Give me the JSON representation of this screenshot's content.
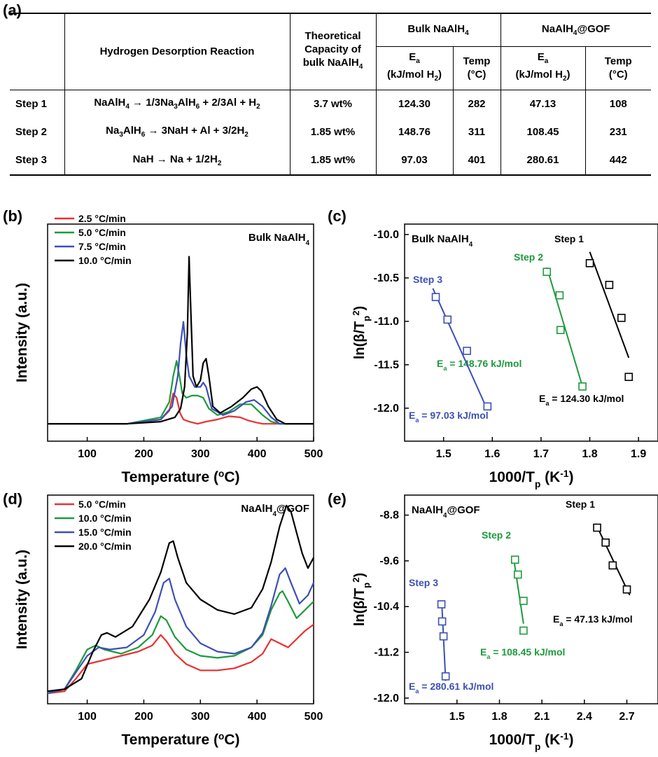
{
  "panel_labels": {
    "a": "(a)",
    "b": "(b)",
    "c": "(c)",
    "d": "(d)",
    "e": "(e)"
  },
  "table": {
    "h_reaction": "Hydrogen Desorption Reaction",
    "h_capacity_1": "Theoretical",
    "h_capacity_2": "Capacity of",
    "h_capacity_3": "bulk NaAlH",
    "h_capacity_3_sub": "4",
    "h_bulk": "Bulk NaAlH",
    "h_bulk_sub": "4",
    "h_gof": "NaAlH",
    "h_gof_sub": "4",
    "h_gof_tail": "@GOF",
    "h_ea": "E",
    "h_ea_sub": "a",
    "h_ea_units_1": "(kJ/mol H",
    "h_ea_units_sub": "2",
    "h_ea_units_2": ")",
    "h_temp_1": "Temp",
    "h_temp_2": "(°C)",
    "rows": [
      {
        "step": "Step 1",
        "reaction": [
          [
            "NaAlH",
            "n"
          ],
          [
            "4",
            "s"
          ],
          [
            " → 1/3Na",
            "n"
          ],
          [
            "3",
            "s"
          ],
          [
            "AlH",
            "n"
          ],
          [
            "6",
            "s"
          ],
          [
            " + 2/3Al + H",
            "n"
          ],
          [
            "2",
            "s"
          ]
        ],
        "capacity": "3.7 wt%",
        "bulk_ea": "124.30",
        "bulk_temp": "282",
        "gof_ea": "47.13",
        "gof_temp": "108"
      },
      {
        "step": "Step 2",
        "reaction": [
          [
            "Na",
            "n"
          ],
          [
            "3",
            "s"
          ],
          [
            "AlH",
            "n"
          ],
          [
            "6",
            "s"
          ],
          [
            " → 3NaH + Al + 3/2H",
            "n"
          ],
          [
            "2",
            "s"
          ]
        ],
        "capacity": "1.85 wt%",
        "bulk_ea": "148.76",
        "bulk_temp": "311",
        "gof_ea": "108.45",
        "gof_temp": "231"
      },
      {
        "step": "Step 3",
        "reaction": [
          [
            "NaH → Na + 1/2H",
            "n"
          ],
          [
            "2",
            "s"
          ]
        ],
        "capacity": "1.85 wt%",
        "bulk_ea": "97.03",
        "bulk_temp": "401",
        "gof_ea": "280.61",
        "gof_temp": "442"
      }
    ]
  },
  "chart_data": [
    {
      "id": "b",
      "type": "line",
      "annotation": "Bulk NaAlH",
      "annotation_sub": "4",
      "xlabel": "Temperature (",
      "xlabel_sup": "o",
      "xlabel_tail": "C)",
      "ylabel": "Intensity (a.u.)",
      "xlim": [
        30,
        500
      ],
      "ylim": [
        0,
        1
      ],
      "xticks": [
        100,
        200,
        300,
        400,
        500
      ],
      "series": [
        {
          "name": "2.5 °C/min",
          "color": "#e8312f",
          "x": [
            30,
            170,
            230,
            245,
            252,
            258,
            264,
            270,
            280,
            295,
            310,
            330,
            350,
            370,
            385,
            400,
            410,
            430,
            450,
            500
          ],
          "y": [
            0.08,
            0.08,
            0.1,
            0.14,
            0.22,
            0.2,
            0.13,
            0.1,
            0.09,
            0.08,
            0.09,
            0.1,
            0.115,
            0.11,
            0.095,
            0.085,
            0.08,
            0.08,
            0.08,
            0.08
          ]
        },
        {
          "name": "5.0 °C/min",
          "color": "#1c9a3c",
          "x": [
            30,
            170,
            230,
            245,
            252,
            258,
            263,
            268,
            275,
            285,
            295,
            305,
            315,
            330,
            350,
            370,
            390,
            410,
            425,
            440,
            500
          ],
          "y": [
            0.08,
            0.08,
            0.11,
            0.18,
            0.3,
            0.37,
            0.3,
            0.22,
            0.2,
            0.21,
            0.21,
            0.2,
            0.15,
            0.12,
            0.135,
            0.17,
            0.17,
            0.12,
            0.09,
            0.08,
            0.08
          ]
        },
        {
          "name": "7.5 °C/min",
          "color": "#3c4fb5",
          "x": [
            30,
            170,
            230,
            250,
            260,
            265,
            270,
            275,
            280,
            290,
            300,
            305,
            310,
            320,
            340,
            360,
            380,
            395,
            410,
            425,
            440,
            500
          ],
          "y": [
            0.08,
            0.08,
            0.1,
            0.16,
            0.3,
            0.45,
            0.55,
            0.4,
            0.3,
            0.25,
            0.25,
            0.27,
            0.25,
            0.15,
            0.12,
            0.14,
            0.18,
            0.19,
            0.16,
            0.11,
            0.08,
            0.08
          ]
        },
        {
          "name": "10.0 °C/min",
          "color": "#000000",
          "x": [
            30,
            170,
            230,
            255,
            265,
            272,
            277,
            280,
            283,
            287,
            293,
            300,
            305,
            310,
            315,
            322,
            335,
            355,
            375,
            390,
            400,
            408,
            420,
            435,
            450,
            500
          ],
          "y": [
            0.08,
            0.08,
            0.09,
            0.11,
            0.15,
            0.25,
            0.5,
            0.85,
            0.6,
            0.3,
            0.25,
            0.28,
            0.36,
            0.38,
            0.3,
            0.16,
            0.13,
            0.16,
            0.2,
            0.24,
            0.25,
            0.23,
            0.16,
            0.1,
            0.08,
            0.08
          ]
        }
      ]
    },
    {
      "id": "c",
      "type": "scatter",
      "annotation": "Bulk NaAlH",
      "annotation_sub": "4",
      "xlabel": "1000/T",
      "xlabel_sub": "p",
      "xlabel_units": " (K",
      "xlabel_sup": "-1",
      "xlabel_tail": ")",
      "ylabel": "ln(β/T",
      "ylabel_sub": "p",
      "ylabel_sup": "2",
      "ylabel_tail": ")",
      "xlim": [
        1.42,
        1.94
      ],
      "ylim": [
        -12.38,
        -9.88
      ],
      "xticks": [
        1.5,
        1.6,
        1.7,
        1.8,
        1.9
      ],
      "yticks": [
        -10.0,
        -10.5,
        -11.0,
        -11.5,
        -12.0
      ],
      "ytick_labels": [
        "-10.0",
        "-10.5",
        "-11.0",
        "-11.5",
        "-12.0"
      ],
      "series": [
        {
          "name": "Step 1",
          "color": "#000000",
          "x": [
            1.8,
            1.84,
            1.865,
            1.88
          ],
          "y": [
            -10.33,
            -10.58,
            -10.96,
            -11.64
          ],
          "fit": [
            [
              1.8,
              -10.2
            ],
            [
              1.88,
              -11.42
            ]
          ],
          "ea": "E",
          "ea_sub": "a",
          "ea_tail": " = 124.30 kJ/mol"
        },
        {
          "name": "Step 2",
          "color": "#1c9a3c",
          "x": [
            1.712,
            1.738,
            1.74,
            1.785
          ],
          "y": [
            -10.43,
            -10.7,
            -11.1,
            -11.75
          ],
          "fit": [
            [
              1.712,
              -10.38
            ],
            [
              1.785,
              -11.75
            ]
          ],
          "ea": "E",
          "ea_sub": "a",
          "ea_tail": " = 148.76 kJ/mol"
        },
        {
          "name": "Step 3",
          "color": "#3c4fb5",
          "x": [
            1.484,
            1.508,
            1.548,
            1.59
          ],
          "y": [
            -10.72,
            -10.98,
            -11.34,
            -11.98
          ],
          "fit": [
            [
              1.478,
              -10.62
            ],
            [
              1.59,
              -12.02
            ]
          ],
          "ea": "E",
          "ea_sub": "a",
          "ea_tail": " = 97.03 kJ/mol"
        }
      ]
    },
    {
      "id": "d",
      "type": "line",
      "annotation": "NaAlH",
      "annotation_sub": "4",
      "annotation_tail": "@GOF",
      "xlabel": "Temperature (",
      "xlabel_sup": "o",
      "xlabel_tail": "C)",
      "ylabel": "Intensity (a.u.)",
      "xlim": [
        30,
        500
      ],
      "ylim": [
        0,
        1
      ],
      "xticks": [
        100,
        200,
        300,
        400,
        500
      ],
      "series": [
        {
          "name": "5.0 °C/min",
          "color": "#e8312f",
          "x": [
            30,
            60,
            80,
            100,
            130,
            160,
            190,
            215,
            230,
            240,
            255,
            275,
            300,
            330,
            360,
            390,
            410,
            425,
            440,
            455,
            470,
            485,
            500
          ],
          "y": [
            0.05,
            0.06,
            0.12,
            0.19,
            0.21,
            0.23,
            0.25,
            0.28,
            0.33,
            0.3,
            0.24,
            0.19,
            0.16,
            0.16,
            0.17,
            0.2,
            0.24,
            0.31,
            0.29,
            0.27,
            0.31,
            0.35,
            0.38
          ]
        },
        {
          "name": "10.0 °C/min",
          "color": "#1c9a3c",
          "x": [
            30,
            60,
            80,
            100,
            115,
            130,
            160,
            190,
            215,
            230,
            240,
            255,
            275,
            300,
            330,
            360,
            390,
            410,
            425,
            440,
            445,
            455,
            470,
            485,
            500
          ],
          "y": [
            0.05,
            0.07,
            0.16,
            0.26,
            0.28,
            0.26,
            0.24,
            0.27,
            0.33,
            0.42,
            0.4,
            0.32,
            0.26,
            0.23,
            0.22,
            0.23,
            0.27,
            0.33,
            0.45,
            0.53,
            0.54,
            0.49,
            0.41,
            0.45,
            0.49
          ]
        },
        {
          "name": "15.0 °C/min",
          "color": "#3c4fb5",
          "x": [
            30,
            60,
            80,
            100,
            120,
            140,
            170,
            200,
            220,
            235,
            245,
            255,
            275,
            300,
            330,
            360,
            390,
            410,
            425,
            440,
            450,
            460,
            475,
            490,
            500
          ],
          "y": [
            0.05,
            0.07,
            0.15,
            0.23,
            0.27,
            0.26,
            0.27,
            0.33,
            0.44,
            0.58,
            0.6,
            0.5,
            0.37,
            0.29,
            0.25,
            0.24,
            0.27,
            0.34,
            0.47,
            0.62,
            0.65,
            0.58,
            0.48,
            0.52,
            0.58
          ]
        },
        {
          "name": "20.0 °C/min",
          "color": "#000000",
          "x": [
            30,
            60,
            90,
            110,
            125,
            135,
            150,
            180,
            210,
            230,
            245,
            252,
            260,
            275,
            300,
            330,
            360,
            390,
            410,
            425,
            440,
            452,
            460,
            470,
            480,
            490,
            500
          ],
          "y": [
            0.06,
            0.07,
            0.12,
            0.25,
            0.33,
            0.34,
            0.32,
            0.37,
            0.5,
            0.63,
            0.77,
            0.78,
            0.7,
            0.58,
            0.5,
            0.45,
            0.43,
            0.46,
            0.55,
            0.68,
            0.85,
            0.95,
            0.92,
            0.82,
            0.72,
            0.65,
            0.7
          ]
        }
      ]
    },
    {
      "id": "e",
      "type": "scatter",
      "annotation": "NaAlH",
      "annotation_sub": "4",
      "annotation_tail": "@GOF",
      "xlabel": "1000/T",
      "xlabel_sub": "p",
      "xlabel_units": " (K",
      "xlabel_sup": "-1",
      "xlabel_tail": ")",
      "ylabel": "ln(β/T",
      "ylabel_sub": "p",
      "ylabel_sup": "2",
      "ylabel_tail": ")",
      "xlim": [
        1.13,
        2.92
      ],
      "ylim": [
        -12.1,
        -8.45
      ],
      "xticks": [
        1.5,
        1.8,
        2.1,
        2.4,
        2.7
      ],
      "yticks": [
        -8.8,
        -9.6,
        -10.4,
        -11.2,
        -12.0
      ],
      "ytick_labels": [
        "-8.8",
        "-9.6",
        "-10.4",
        "-11.2",
        "-12.0"
      ],
      "series": [
        {
          "name": "Step 1",
          "color": "#000000",
          "x": [
            2.49,
            2.55,
            2.6,
            2.7
          ],
          "y": [
            -9.02,
            -9.28,
            -9.68,
            -10.1
          ],
          "fit": [
            [
              2.48,
              -8.95
            ],
            [
              2.72,
              -10.2
            ]
          ],
          "ea": "E",
          "ea_sub": "a",
          "ea_tail": " = 47.13 kJ/mol"
        },
        {
          "name": "Step 2",
          "color": "#1c9a3c",
          "x": [
            1.91,
            1.93,
            1.97,
            1.97
          ],
          "y": [
            -9.58,
            -9.84,
            -10.3,
            -10.82
          ],
          "fit": [
            [
              1.9,
              -9.55
            ],
            [
              1.97,
              -10.7
            ]
          ],
          "ea": "E",
          "ea_sub": "a",
          "ea_tail": " = 108.45 kJ/mol"
        },
        {
          "name": "Step 3",
          "color": "#3c4fb5",
          "x": [
            1.39,
            1.395,
            1.405,
            1.42
          ],
          "y": [
            -10.36,
            -10.66,
            -10.92,
            -11.62
          ],
          "fit": [
            [
              1.392,
              -10.3
            ],
            [
              1.42,
              -11.7
            ]
          ],
          "ea": "E",
          "ea_sub": "a",
          "ea_tail": " = 280.61 kJ/mol"
        }
      ]
    }
  ]
}
